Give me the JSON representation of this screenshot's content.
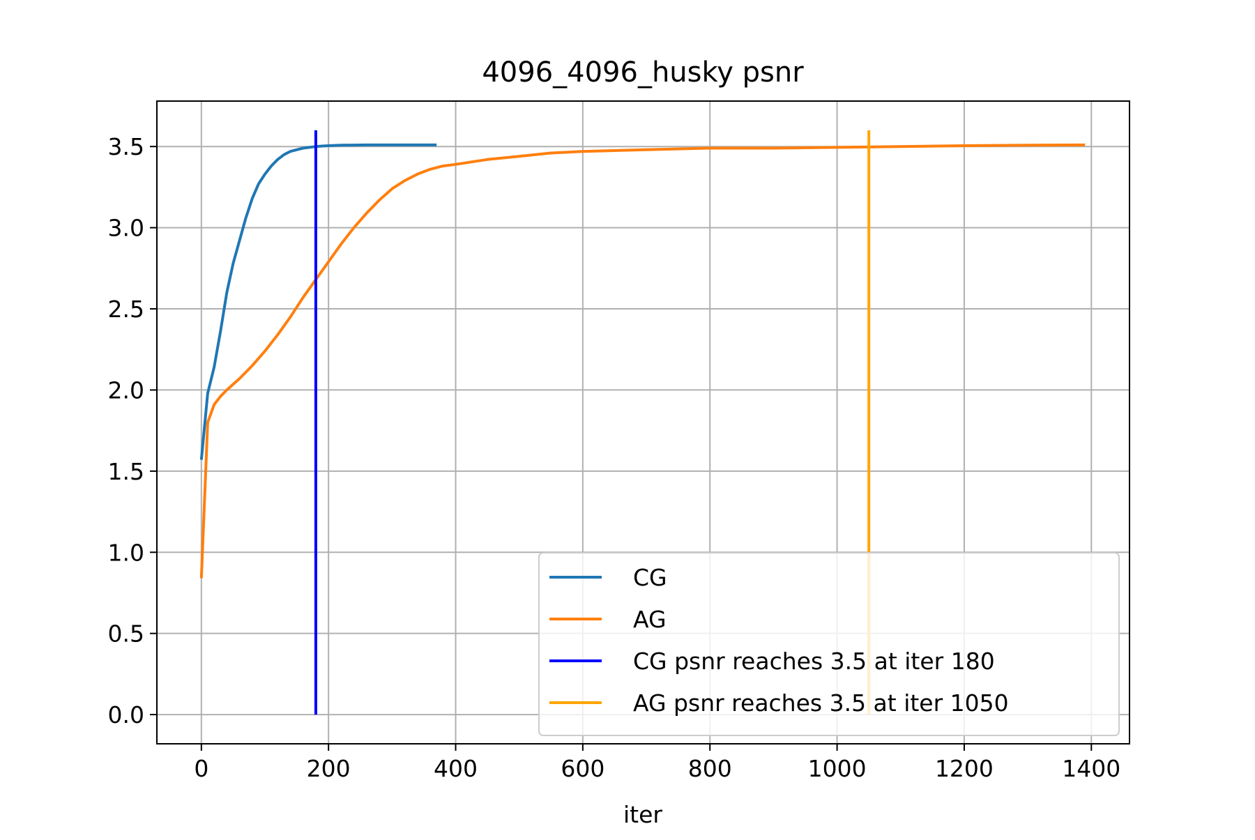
{
  "chart_data": {
    "type": "line",
    "title": "4096_4096_husky psnr",
    "xlabel": "iter",
    "ylabel": "",
    "xlim": [
      -70,
      1460
    ],
    "ylim": [
      -0.18,
      3.78
    ],
    "xticks": [
      0,
      200,
      400,
      600,
      800,
      1000,
      1200,
      1400
    ],
    "xtick_labels": [
      "0",
      "200",
      "400",
      "600",
      "800",
      "1000",
      "1200",
      "1400"
    ],
    "yticks": [
      0.0,
      0.5,
      1.0,
      1.5,
      2.0,
      2.5,
      3.0,
      3.5
    ],
    "ytick_labels": [
      "0.0",
      "0.5",
      "1.0",
      "1.5",
      "2.0",
      "2.5",
      "3.0",
      "3.5"
    ],
    "grid": true,
    "legend_position": "lower-right",
    "series": [
      {
        "name": "CG",
        "color": "#1f77b4",
        "x": [
          0,
          10,
          20,
          30,
          40,
          50,
          60,
          70,
          80,
          90,
          100,
          110,
          120,
          130,
          140,
          150,
          160,
          170,
          180,
          190,
          200,
          220,
          240,
          260,
          280,
          300,
          320,
          340,
          370
        ],
        "y": [
          1.57,
          1.98,
          2.14,
          2.36,
          2.6,
          2.78,
          2.92,
          3.06,
          3.18,
          3.27,
          3.33,
          3.38,
          3.42,
          3.45,
          3.47,
          3.48,
          3.49,
          3.495,
          3.5,
          3.503,
          3.505,
          3.508,
          3.509,
          3.51,
          3.51,
          3.51,
          3.51,
          3.51,
          3.51
        ]
      },
      {
        "name": "AG",
        "color": "#ff7f0e",
        "x": [
          0,
          10,
          20,
          30,
          40,
          60,
          80,
          100,
          120,
          140,
          160,
          180,
          200,
          220,
          240,
          260,
          280,
          300,
          320,
          340,
          360,
          380,
          400,
          450,
          500,
          550,
          600,
          700,
          800,
          900,
          1000,
          1100,
          1200,
          1300,
          1390
        ],
        "y": [
          0.84,
          1.8,
          1.91,
          1.96,
          2.0,
          2.07,
          2.15,
          2.24,
          2.34,
          2.45,
          2.57,
          2.68,
          2.79,
          2.9,
          3.0,
          3.09,
          3.17,
          3.24,
          3.29,
          3.33,
          3.36,
          3.38,
          3.39,
          3.42,
          3.44,
          3.46,
          3.47,
          3.48,
          3.49,
          3.49,
          3.495,
          3.5,
          3.505,
          3.508,
          3.51
        ]
      }
    ],
    "vlines": [
      {
        "name": "CG psnr reaches 3.5 at iter 180",
        "color": "#0000ff",
        "x": 180,
        "y0": 0.0,
        "y1": 3.6
      },
      {
        "name": "AG psnr reaches 3.5 at iter 1050",
        "color": "#ffa500",
        "x": 1050,
        "y0": 0.0,
        "y1": 3.6
      }
    ]
  }
}
